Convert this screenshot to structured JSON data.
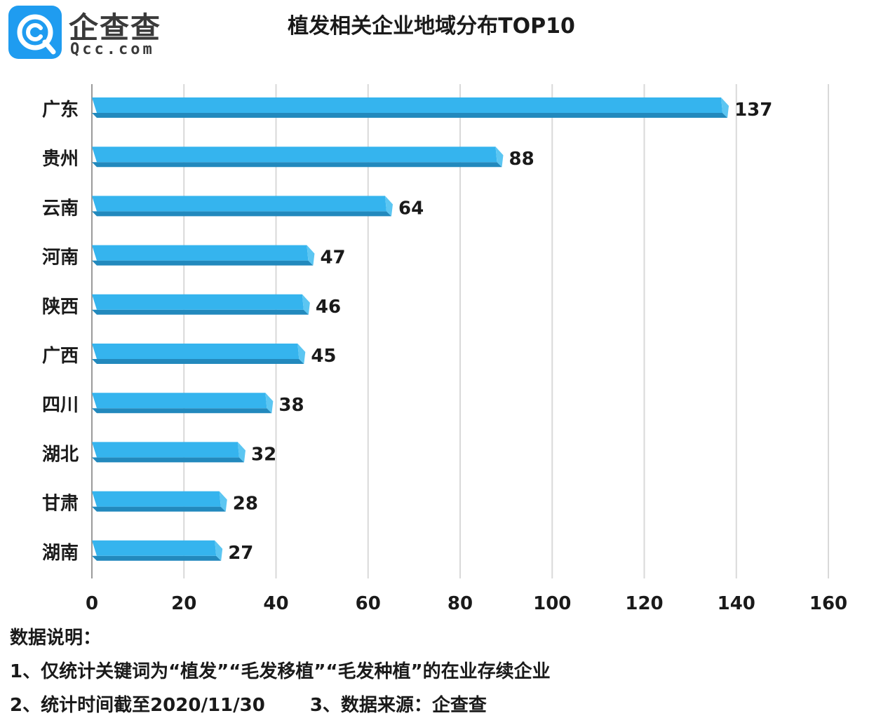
{
  "logo": {
    "name_cn": "企查查",
    "name_en": "Qcc.com"
  },
  "title": "植发相关企业地域分布TOP10",
  "chart_data": {
    "type": "bar",
    "orientation": "horizontal",
    "title": "植发相关企业地域分布TOP10",
    "categories": [
      "广东",
      "贵州",
      "云南",
      "河南",
      "陕西",
      "广西",
      "四川",
      "湖北",
      "甘肃",
      "湖南"
    ],
    "values": [
      137,
      88,
      64,
      47,
      46,
      45,
      38,
      32,
      28,
      27
    ],
    "xlim": [
      0,
      160
    ],
    "xticks": [
      "0",
      "20",
      "40",
      "60",
      "80",
      "100",
      "120",
      "140",
      "160"
    ],
    "grid": "vertical",
    "bar_color": "#35b4ee",
    "bar_shadow_color": "#2289bd"
  },
  "notes": {
    "heading": "数据说明：",
    "line1": "1、仅统计关键词为“植发”“毛发移植”“毛发种植”的在业存续企业",
    "line2a": "2、统计时间截至2020/11/30",
    "line2b": "3、数据来源：企查查"
  }
}
